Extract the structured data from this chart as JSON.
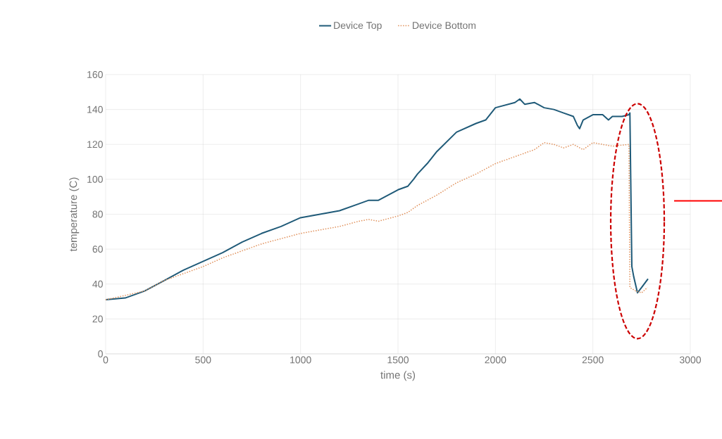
{
  "chart_data": {
    "type": "line",
    "xlabel": "time (s)",
    "ylabel": "temperature (C)",
    "xlim": [
      0,
      3000
    ],
    "ylim": [
      0,
      160
    ],
    "xticks": [
      0,
      500,
      1000,
      1500,
      2000,
      2500,
      3000
    ],
    "yticks": [
      0,
      20,
      40,
      60,
      80,
      100,
      120,
      140,
      160
    ],
    "grid": true,
    "legend": "top",
    "marker": "none",
    "series": [
      {
        "name": "Device Top",
        "color": "#1f5a78",
        "line_style": "solid",
        "x": [
          0,
          100,
          200,
          300,
          400,
          500,
          600,
          700,
          800,
          900,
          1000,
          1100,
          1200,
          1300,
          1350,
          1400,
          1500,
          1550,
          1580,
          1600,
          1650,
          1700,
          1800,
          1900,
          1950,
          2000,
          2100,
          2125,
          2150,
          2200,
          2250,
          2300,
          2350,
          2400,
          2420,
          2432,
          2450,
          2500,
          2550,
          2580,
          2600,
          2650,
          2685,
          2690,
          2700,
          2710,
          2729,
          2750,
          2783
        ],
        "values": [
          31,
          32,
          36,
          42,
          48,
          53,
          58,
          64,
          69,
          73,
          78,
          80,
          82,
          86,
          88,
          88,
          94,
          96,
          100,
          103,
          109,
          116,
          127,
          132,
          134,
          141,
          144,
          146,
          143,
          144,
          141,
          140,
          138,
          136,
          131,
          129,
          134,
          137,
          137,
          134,
          136,
          136,
          137,
          138,
          50,
          44,
          35,
          38,
          43
        ]
      },
      {
        "name": "Device Bottom",
        "color": "#e0905a",
        "line_style": "dotted",
        "x": [
          0,
          200,
          300,
          400,
          500,
          600,
          700,
          800,
          900,
          1000,
          1100,
          1200,
          1300,
          1350,
          1400,
          1500,
          1550,
          1600,
          1700,
          1800,
          1900,
          2000,
          2100,
          2200,
          2250,
          2300,
          2350,
          2400,
          2450,
          2500,
          2550,
          2600,
          2685,
          2690,
          2720,
          2750,
          2780
        ],
        "values": [
          31,
          36,
          42,
          46,
          50,
          55,
          59,
          63,
          66,
          69,
          71,
          73,
          76,
          77,
          76,
          79,
          81,
          85,
          91,
          98,
          103,
          109,
          113,
          117,
          121,
          120,
          118,
          120,
          117,
          121,
          120,
          119,
          120,
          38,
          36,
          35,
          38
        ]
      }
    ]
  }
}
